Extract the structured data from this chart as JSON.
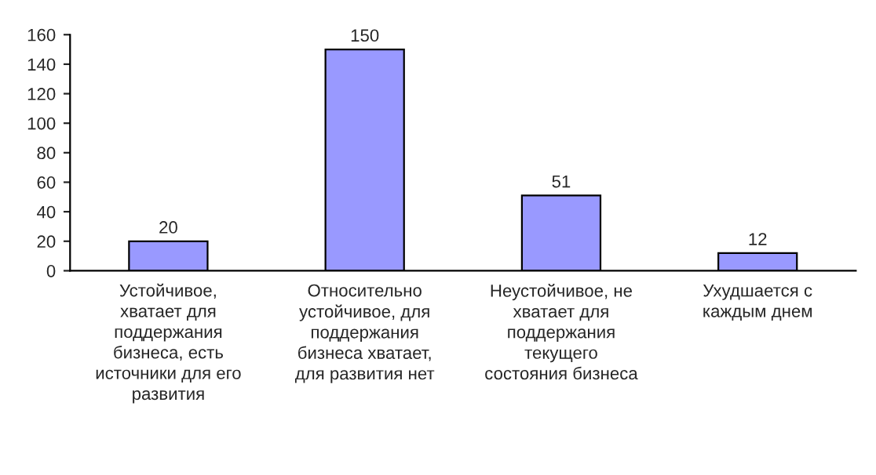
{
  "chart_data": {
    "type": "bar",
    "categories": [
      "Устойчивое,\nхватает для\nподдержания\nбизнеса, есть\nисточники для его\nразвития",
      "Относительно\nустойчивое, для\nподдержания\nбизнеса хватает,\nдля развития нет",
      "Неустойчивое, не\nхватает для\nподдержания\nтекущего\nсостояния бизнеса",
      "Ухудшается с\nкаждым днем"
    ],
    "values": [
      20,
      150,
      51,
      12
    ],
    "color": "#9999ff",
    "ylim": [
      0,
      160
    ],
    "yticks": [
      0,
      20,
      40,
      60,
      80,
      100,
      120,
      140,
      160
    ],
    "data_labels": true
  }
}
